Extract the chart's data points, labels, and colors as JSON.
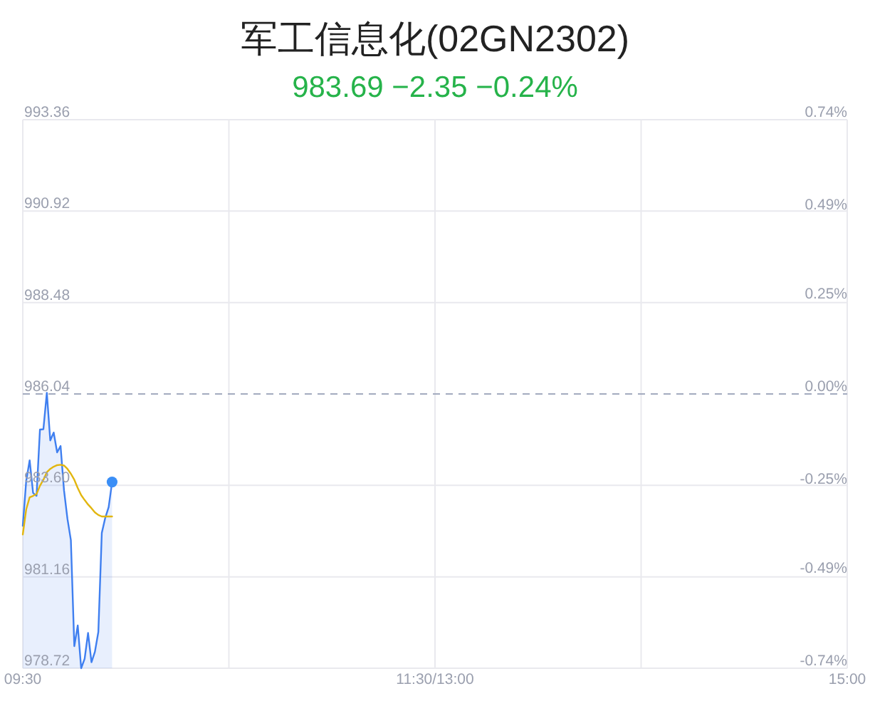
{
  "chart_data": {
    "type": "line",
    "title": "军工信息化(02GN2302)",
    "subtitle": "983.69 −2.35 −0.24%",
    "categories": [
      "09:30",
      null,
      null,
      null,
      null,
      null,
      null,
      null,
      null,
      null,
      null,
      null,
      null,
      null,
      null,
      null,
      null,
      null,
      null,
      null,
      null,
      null,
      null,
      null,
      null,
      null,
      null,
      null,
      null,
      null,
      null,
      null,
      null,
      null,
      null,
      null,
      null,
      null,
      null,
      null,
      null,
      null,
      null,
      null,
      null,
      null,
      null,
      null,
      null,
      null,
      null,
      null,
      null,
      null,
      null,
      null,
      null,
      null,
      null,
      null,
      null,
      null,
      null,
      null,
      null,
      null,
      null,
      null,
      null,
      null,
      null,
      null,
      null,
      null,
      null,
      null,
      null,
      null,
      null,
      null,
      null,
      null,
      null,
      null,
      null,
      null,
      null,
      null,
      null,
      null,
      null,
      null,
      null,
      null,
      null,
      null,
      null,
      null,
      null,
      null,
      null,
      null,
      null,
      null,
      null,
      null,
      null,
      null,
      null,
      null,
      null,
      null,
      null,
      null,
      null,
      null,
      null,
      null,
      null,
      null,
      "11:30/13:00",
      null,
      null,
      null,
      null,
      null,
      null,
      null,
      null,
      null,
      null,
      null,
      null,
      null,
      null,
      null,
      null,
      null,
      null,
      null,
      null,
      null,
      null,
      null,
      null,
      null,
      null,
      null,
      null,
      null,
      null,
      null,
      null,
      null,
      null,
      null,
      null,
      null,
      null,
      null,
      null,
      null,
      null,
      null,
      null,
      null,
      null,
      null,
      null,
      null,
      null,
      null,
      null,
      null,
      null,
      null,
      null,
      null,
      null,
      null,
      null,
      null,
      null,
      null,
      null,
      null,
      null,
      null,
      null,
      null,
      null,
      null,
      null,
      null,
      null,
      null,
      null,
      null,
      null,
      null,
      null,
      null,
      null,
      null,
      null,
      null,
      null,
      null,
      null,
      null,
      null,
      null,
      null,
      null,
      null,
      null,
      null,
      null,
      null,
      null,
      null,
      null,
      null,
      null,
      null,
      null,
      null,
      null,
      null,
      null,
      null,
      null,
      null,
      null,
      null,
      null,
      null,
      null,
      null,
      null,
      "15:00"
    ],
    "ylim": [
      978.72,
      993.36
    ],
    "yticks": [
      978.72,
      981.16,
      {
        "value": 983.6,
        "label": "983.60"
      },
      986.04,
      988.48,
      990.92,
      993.36
    ],
    "y2lim": [
      -0.74,
      0.74
    ],
    "y2ticks": [
      {
        "value": -0.74,
        "label": "-0.74%"
      },
      {
        "value": -0.49,
        "label": "-0.49%"
      },
      {
        "value": -0.25,
        "label": "-0.25%"
      },
      {
        "value": 0,
        "label": "0.00%"
      },
      {
        "value": 0.25,
        "label": "0.25%"
      },
      {
        "value": 0.49,
        "label": "0.49%"
      },
      {
        "value": 0.74,
        "label": "0.74%"
      }
    ],
    "grid": true,
    "ref_lines": [
      {
        "axis": "y",
        "value": 986.04,
        "color": "#a3abbf",
        "line_style": "dashed"
      }
    ],
    "series": [
      {
        "type": "area",
        "color": "#3f7ff0",
        "values": [
          982.52,
          983.72,
          984.27,
          983.4,
          983.32,
          985.09,
          985.1,
          986.07,
          984.8,
          985.01,
          984.48,
          984.65,
          983.47,
          982.71,
          982.14,
          979.31,
          979.86,
          978.72,
          978.97,
          979.66,
          978.88,
          979.16,
          979.69,
          982.33,
          982.73,
          983.02,
          983.69,
          null,
          null,
          null,
          null,
          null,
          null,
          null,
          null,
          null,
          null,
          null,
          null,
          null,
          null,
          null,
          null,
          null,
          null,
          null,
          null,
          null,
          null,
          null,
          null,
          null,
          null,
          null,
          null,
          null,
          null,
          null,
          null,
          null,
          null,
          null,
          null,
          null,
          null,
          null,
          null,
          null,
          null,
          null,
          null,
          null,
          null,
          null,
          null,
          null,
          null,
          null,
          null,
          null,
          null,
          null,
          null,
          null,
          null,
          null,
          null,
          null,
          null,
          null,
          null,
          null,
          null,
          null,
          null,
          null,
          null,
          null,
          null,
          null,
          null,
          null,
          null,
          null,
          null,
          null,
          null,
          null,
          null,
          null,
          null,
          null,
          null,
          null,
          null,
          null,
          null,
          null,
          null,
          null,
          null,
          null,
          null,
          null,
          null,
          null,
          null,
          null,
          null,
          null,
          null,
          null,
          null,
          null,
          null,
          null,
          null,
          null,
          null,
          null,
          null,
          null,
          null,
          null,
          null,
          null,
          null,
          null,
          null,
          null,
          null,
          null,
          null,
          null,
          null,
          null,
          null,
          null,
          null,
          null,
          null,
          null,
          null,
          null,
          null,
          null,
          null,
          null,
          null,
          null,
          null,
          null,
          null,
          null,
          null,
          null,
          null,
          null,
          null,
          null,
          null,
          null,
          null,
          null,
          null,
          null,
          null,
          null,
          null,
          null,
          null,
          null,
          null,
          null,
          null,
          null,
          null,
          null,
          null,
          null,
          null,
          null,
          null,
          null,
          null,
          null,
          null,
          null,
          null,
          null,
          null,
          null,
          null,
          null,
          null,
          null,
          null,
          null,
          null,
          null,
          null,
          null,
          null,
          null,
          null,
          null,
          null,
          null,
          null,
          null,
          null,
          null,
          null,
          null,
          null,
          null,
          null,
          null,
          null,
          null,
          null
        ]
      },
      {
        "color": "#e2b60f",
        "values": [
          982.29,
          982.96,
          983.28,
          983.32,
          983.37,
          983.59,
          983.75,
          983.95,
          984.04,
          984.1,
          984.14,
          984.15,
          984.13,
          984.04,
          983.91,
          983.75,
          983.53,
          983.34,
          983.21,
          983.09,
          982.99,
          982.88,
          982.81,
          982.77,
          982.77,
          982.77,
          982.77,
          null,
          null,
          null,
          null,
          null,
          null,
          null,
          null,
          null,
          null,
          null,
          null,
          null,
          null,
          null,
          null,
          null,
          null,
          null,
          null,
          null,
          null,
          null,
          null,
          null,
          null,
          null,
          null,
          null,
          null,
          null,
          null,
          null,
          null,
          null,
          null,
          null,
          null,
          null,
          null,
          null,
          null,
          null,
          null,
          null,
          null,
          null,
          null,
          null,
          null,
          null,
          null,
          null,
          null,
          null,
          null,
          null,
          null,
          null,
          null,
          null,
          null,
          null,
          null,
          null,
          null,
          null,
          null,
          null,
          null,
          null,
          null,
          null,
          null,
          null,
          null,
          null,
          null,
          null,
          null,
          null,
          null,
          null,
          null,
          null,
          null,
          null,
          null,
          null,
          null,
          null,
          null,
          null,
          null,
          null,
          null,
          null,
          null,
          null,
          null,
          null,
          null,
          null,
          null,
          null,
          null,
          null,
          null,
          null,
          null,
          null,
          null,
          null,
          null,
          null,
          null,
          null,
          null,
          null,
          null,
          null,
          null,
          null,
          null,
          null,
          null,
          null,
          null,
          null,
          null,
          null,
          null,
          null,
          null,
          null,
          null,
          null,
          null,
          null,
          null,
          null,
          null,
          null,
          null,
          null,
          null,
          null,
          null,
          null,
          null,
          null,
          null,
          null,
          null,
          null,
          null,
          null,
          null,
          null,
          null,
          null,
          null,
          null,
          null,
          null,
          null,
          null,
          null,
          null,
          null,
          null,
          null,
          null,
          null,
          null,
          null,
          null,
          null,
          null,
          null,
          null,
          null,
          null,
          null,
          null,
          null,
          null,
          null,
          null,
          null,
          null,
          null,
          null,
          null,
          null,
          null,
          null,
          null,
          null,
          null,
          null,
          null,
          null,
          null,
          null,
          null,
          null,
          null,
          null,
          null,
          null,
          null,
          null,
          null
        ]
      },
      {
        "type": "scatter",
        "color": "#3a8ef6",
        "marker": "circle",
        "values": [
          null,
          null,
          null,
          null,
          null,
          null,
          null,
          null,
          null,
          null,
          null,
          null,
          null,
          null,
          null,
          null,
          null,
          null,
          null,
          null,
          null,
          null,
          null,
          null,
          null,
          null,
          983.69,
          null,
          null,
          null,
          null,
          null,
          null,
          null,
          null,
          null,
          null,
          null,
          null,
          null,
          null,
          null,
          null,
          null,
          null,
          null,
          null,
          null,
          null,
          null,
          null,
          null,
          null,
          null,
          null,
          null,
          null,
          null,
          null,
          null,
          null,
          null,
          null,
          null,
          null,
          null,
          null,
          null,
          null,
          null,
          null,
          null,
          null,
          null,
          null,
          null,
          null,
          null,
          null,
          null,
          null,
          null,
          null,
          null,
          null,
          null,
          null,
          null,
          null,
          null,
          null,
          null,
          null,
          null,
          null,
          null,
          null,
          null,
          null,
          null,
          null,
          null,
          null,
          null,
          null,
          null,
          null,
          null,
          null,
          null,
          null,
          null,
          null,
          null,
          null,
          null,
          null,
          null,
          null,
          null,
          null,
          null,
          null,
          null,
          null,
          null,
          null,
          null,
          null,
          null,
          null,
          null,
          null,
          null,
          null,
          null,
          null,
          null,
          null,
          null,
          null,
          null,
          null,
          null,
          null,
          null,
          null,
          null,
          null,
          null,
          null,
          null,
          null,
          null,
          null,
          null,
          null,
          null,
          null,
          null,
          null,
          null,
          null,
          null,
          null,
          null,
          null,
          null,
          null,
          null,
          null,
          null,
          null,
          null,
          null,
          null,
          null,
          null,
          null,
          null,
          null,
          null,
          null,
          null,
          null,
          null,
          null,
          null,
          null,
          null,
          null,
          null,
          null,
          null,
          null,
          null,
          null,
          null,
          null,
          null,
          null,
          null,
          null,
          null,
          null,
          null,
          null,
          null,
          null,
          null,
          null,
          null,
          null,
          null,
          null,
          null,
          null,
          null,
          null,
          null,
          null,
          null,
          null,
          null,
          null,
          null,
          null,
          null,
          null,
          null,
          null,
          null,
          null,
          null,
          null,
          null,
          null,
          null,
          null,
          null,
          null
        ]
      }
    ]
  }
}
